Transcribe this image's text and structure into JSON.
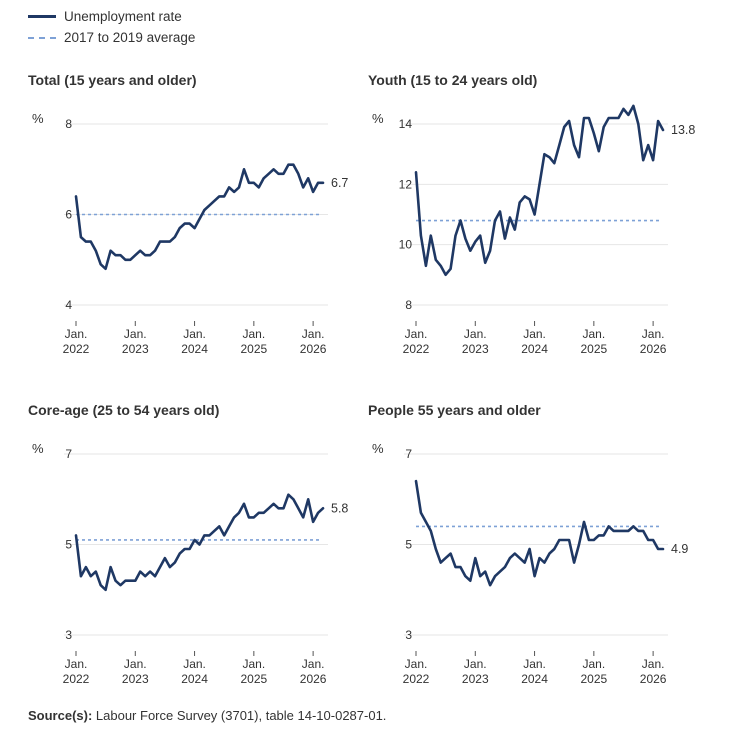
{
  "legend": {
    "rate_label": "Unemployment rate",
    "avg_label": "2017 to 2019 average"
  },
  "source": {
    "label": "Source(s):",
    "text": " Labour Force Survey (3701), table 14-10-0287-01."
  },
  "colors": {
    "series": "#1f3864",
    "average": "#7ea1d6",
    "grid": "#e6e6e6"
  },
  "chart_data": [
    {
      "type": "line",
      "title": "Total (15 years and older)",
      "ylabel": "%",
      "ylim": [
        4,
        8
      ],
      "yticks": [
        4,
        6,
        8
      ],
      "xticks": [
        "Jan. 2022",
        "Jan. 2023",
        "Jan. 2024",
        "Jan. 2025",
        "Jan. 2026"
      ],
      "end_label": "6.7",
      "average": 6.0,
      "start": "2022-01",
      "series": [
        {
          "values": [
            6.4,
            5.5,
            5.4,
            5.4,
            5.2,
            4.9,
            4.8,
            5.2,
            5.1,
            5.1,
            5.0,
            5.0,
            5.1,
            5.2,
            5.1,
            5.1,
            5.2,
            5.4,
            5.4,
            5.4,
            5.5,
            5.7,
            5.8,
            5.8,
            5.7,
            5.9,
            6.1,
            6.2,
            6.3,
            6.4,
            6.4,
            6.6,
            6.5,
            6.6,
            7.0,
            6.7,
            6.7,
            6.6,
            6.8,
            6.9,
            7.0,
            6.9,
            6.9,
            7.1,
            7.1,
            6.9,
            6.6,
            6.8,
            6.5,
            6.7,
            6.7
          ]
        }
      ]
    },
    {
      "type": "line",
      "title": "Youth (15 to 24 years old)",
      "ylabel": "%",
      "ylim": [
        8,
        14
      ],
      "yticks": [
        8,
        10,
        12,
        14
      ],
      "xticks": [
        "Jan. 2022",
        "Jan. 2023",
        "Jan. 2024",
        "Jan. 2025",
        "Jan. 2026"
      ],
      "end_label": "13.8",
      "average": 10.8,
      "start": "2022-01",
      "series": [
        {
          "values": [
            12.4,
            10.3,
            9.3,
            10.3,
            9.5,
            9.3,
            9.0,
            9.2,
            10.3,
            10.8,
            10.2,
            9.8,
            10.1,
            10.3,
            9.4,
            9.8,
            10.8,
            11.1,
            10.2,
            10.9,
            10.5,
            11.4,
            11.6,
            11.5,
            11.0,
            12.0,
            13.0,
            12.9,
            12.7,
            13.3,
            13.9,
            14.1,
            13.3,
            12.9,
            14.2,
            14.2,
            13.7,
            13.1,
            13.9,
            14.2,
            14.2,
            14.2,
            14.5,
            14.3,
            14.6,
            14.0,
            12.8,
            13.3,
            12.8,
            14.1,
            13.8
          ]
        }
      ]
    },
    {
      "type": "line",
      "title": "Core-age (25 to 54 years old)",
      "ylabel": "%",
      "ylim": [
        3,
        7
      ],
      "yticks": [
        3,
        5,
        7
      ],
      "xticks": [
        "Jan. 2022",
        "Jan. 2023",
        "Jan. 2024",
        "Jan. 2025",
        "Jan. 2026"
      ],
      "end_label": "5.8",
      "average": 5.1,
      "start": "2022-01",
      "series": [
        {
          "values": [
            5.2,
            4.3,
            4.5,
            4.3,
            4.4,
            4.1,
            4.0,
            4.5,
            4.2,
            4.1,
            4.2,
            4.2,
            4.2,
            4.4,
            4.3,
            4.4,
            4.3,
            4.5,
            4.7,
            4.5,
            4.6,
            4.8,
            4.9,
            4.9,
            5.1,
            5.0,
            5.2,
            5.2,
            5.3,
            5.4,
            5.2,
            5.4,
            5.6,
            5.7,
            5.9,
            5.6,
            5.6,
            5.7,
            5.7,
            5.8,
            5.9,
            5.8,
            5.8,
            6.1,
            6.0,
            5.8,
            5.6,
            6.0,
            5.5,
            5.7,
            5.8
          ]
        }
      ]
    },
    {
      "type": "line",
      "title": "People 55 years and older",
      "ylabel": "%",
      "ylim": [
        3,
        7
      ],
      "yticks": [
        3,
        5,
        7
      ],
      "xticks": [
        "Jan. 2022",
        "Jan. 2023",
        "Jan. 2024",
        "Jan. 2025",
        "Jan. 2026"
      ],
      "end_label": "4.9",
      "average": 5.4,
      "start": "2022-01",
      "series": [
        {
          "values": [
            6.4,
            5.7,
            5.5,
            5.3,
            4.9,
            4.6,
            4.7,
            4.8,
            4.5,
            4.5,
            4.3,
            4.2,
            4.7,
            4.3,
            4.4,
            4.1,
            4.3,
            4.4,
            4.5,
            4.7,
            4.8,
            4.7,
            4.6,
            4.9,
            4.3,
            4.7,
            4.6,
            4.8,
            4.9,
            5.1,
            5.1,
            5.1,
            4.6,
            5.0,
            5.5,
            5.1,
            5.1,
            5.2,
            5.2,
            5.4,
            5.3,
            5.3,
            5.3,
            5.3,
            5.4,
            5.3,
            5.3,
            5.1,
            5.1,
            4.9,
            4.9
          ]
        }
      ]
    }
  ]
}
